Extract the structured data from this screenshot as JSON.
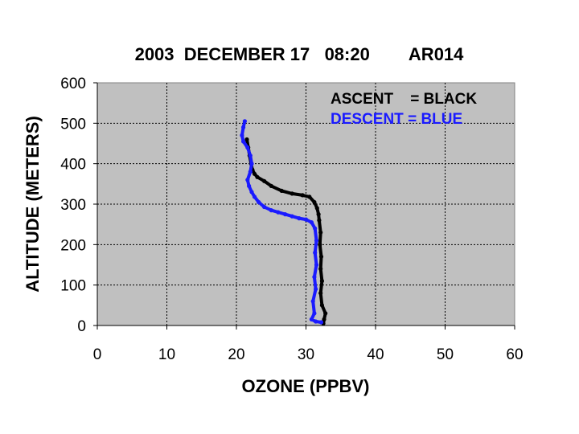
{
  "chart_data": {
    "type": "line",
    "title": "2003  DECEMBER 17   08:20        AR014",
    "xlabel": "OZONE (PPBV)",
    "ylabel": "ALTITUDE (METERS)",
    "xlim": [
      0,
      60
    ],
    "ylim": [
      0,
      600
    ],
    "xticks": [
      "0",
      "10",
      "20",
      "30",
      "40",
      "50",
      "60"
    ],
    "yticks": [
      "0",
      "100",
      "200",
      "300",
      "400",
      "500",
      "600"
    ],
    "grid": true,
    "plot_background": "#c0c0c0",
    "legend_lines": [
      {
        "text": "ASCENT    = BLACK",
        "color": "#000000"
      },
      {
        "text": "DESCENT = BLUE",
        "color": "#1a1aff"
      }
    ],
    "series": [
      {
        "color": "#000000",
        "points": [
          [
            32.5,
            5
          ],
          [
            32.6,
            15
          ],
          [
            32.8,
            30
          ],
          [
            32.3,
            50
          ],
          [
            32.1,
            80
          ],
          [
            32.3,
            110
          ],
          [
            32.1,
            140
          ],
          [
            32.2,
            170
          ],
          [
            32.0,
            200
          ],
          [
            32.1,
            230
          ],
          [
            31.9,
            260
          ],
          [
            31.8,
            275
          ],
          [
            31.6,
            290
          ],
          [
            31.2,
            305
          ],
          [
            30.5,
            318
          ],
          [
            29.5,
            322
          ],
          [
            28.0,
            326
          ],
          [
            26.5,
            333
          ],
          [
            25.0,
            345
          ],
          [
            24.0,
            357
          ],
          [
            23.0,
            367
          ],
          [
            22.6,
            375
          ],
          [
            22.3,
            385
          ],
          [
            22.1,
            400
          ],
          [
            21.9,
            420
          ],
          [
            21.7,
            440
          ],
          [
            21.5,
            460
          ]
        ]
      },
      {
        "color": "#1a1aff",
        "points": [
          [
            32.2,
            8
          ],
          [
            31.4,
            10
          ],
          [
            30.8,
            15
          ],
          [
            31.2,
            30
          ],
          [
            31.0,
            60
          ],
          [
            31.4,
            90
          ],
          [
            31.2,
            120
          ],
          [
            31.5,
            150
          ],
          [
            31.3,
            180
          ],
          [
            31.5,
            210
          ],
          [
            31.3,
            240
          ],
          [
            30.8,
            255
          ],
          [
            30.0,
            262
          ],
          [
            29.0,
            265
          ],
          [
            28.0,
            270
          ],
          [
            27.0,
            275
          ],
          [
            26.0,
            280
          ],
          [
            25.0,
            285
          ],
          [
            24.0,
            293
          ],
          [
            23.2,
            305
          ],
          [
            22.6,
            318
          ],
          [
            22.2,
            330
          ],
          [
            21.8,
            345
          ],
          [
            21.6,
            360
          ],
          [
            22.0,
            380
          ],
          [
            22.2,
            400
          ],
          [
            22.0,
            420
          ],
          [
            21.6,
            440
          ],
          [
            21.0,
            455
          ],
          [
            20.8,
            470
          ],
          [
            21.0,
            490
          ],
          [
            21.2,
            505
          ]
        ]
      }
    ]
  }
}
